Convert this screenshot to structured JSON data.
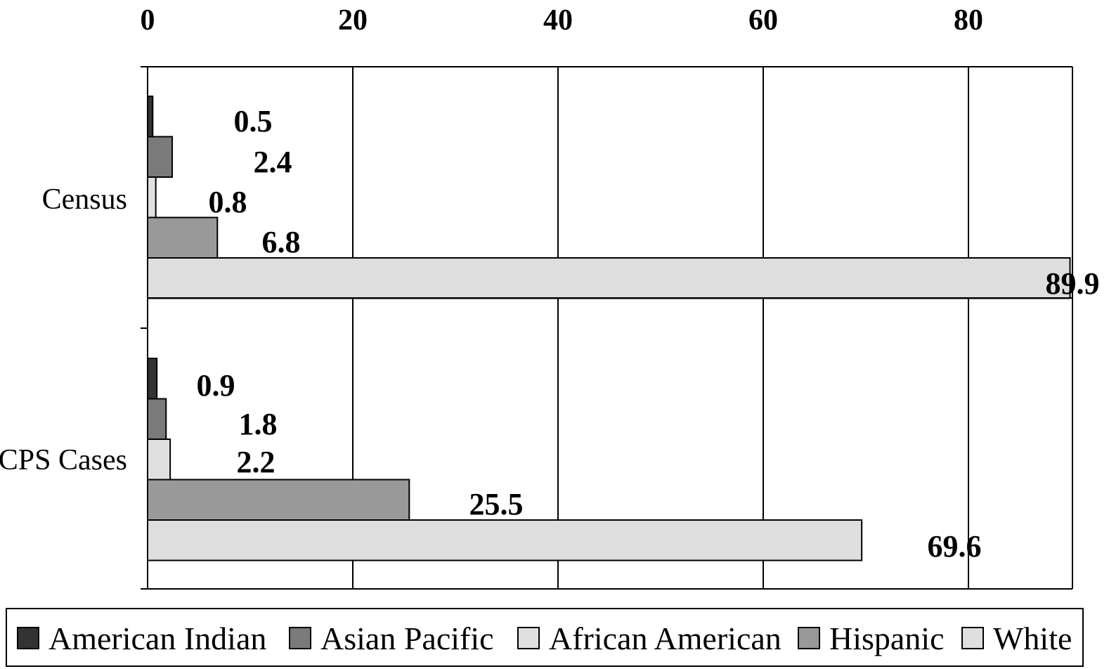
{
  "chart_data": {
    "type": "bar",
    "orientation": "horizontal",
    "categories": [
      "Census",
      "CPS Cases"
    ],
    "series": [
      {
        "name": "American Indian",
        "color": "#333333",
        "values": [
          0.5,
          0.9
        ]
      },
      {
        "name": "Asian Pacific",
        "color": "#7a7a7a",
        "values": [
          2.4,
          1.8
        ]
      },
      {
        "name": "African American",
        "color": "#e0e0e0",
        "values": [
          0.8,
          2.2
        ]
      },
      {
        "name": "Hispanic",
        "color": "#999999",
        "values": [
          6.8,
          25.5
        ]
      },
      {
        "name": "White",
        "color": "#dedede",
        "values": [
          89.9,
          69.6
        ]
      }
    ],
    "data_labels": [
      [
        "0.5",
        "2.4",
        "0.8",
        "6.8",
        "89.9"
      ],
      [
        "0.9",
        "1.8",
        "2.2",
        "25.5",
        "69.6"
      ]
    ],
    "x_ticks": [
      "0",
      "20",
      "40",
      "60",
      "80"
    ],
    "xlim": [
      0,
      90
    ],
    "x_axis_position": "top",
    "grid": true,
    "legend_position": "bottom"
  }
}
